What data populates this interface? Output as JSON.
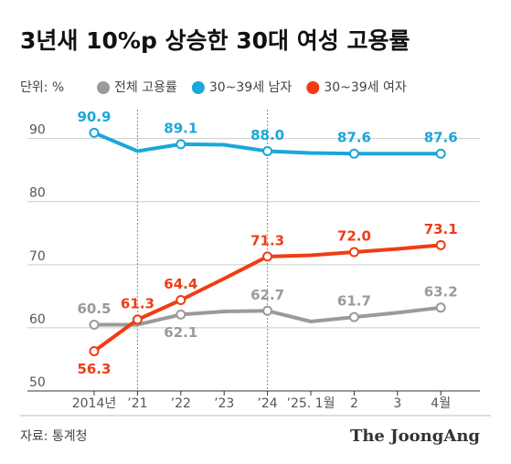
{
  "chart_data": {
    "type": "line",
    "title": "3년새 10%p 상승한 30대 여성 고용률",
    "unit": "단위: %",
    "source": "자료: 통계청",
    "credit": "The JoongAng",
    "categories": [
      "2014년",
      "’21",
      "’22",
      "’23",
      "’24",
      "’25. 1월",
      "2",
      "3",
      "4월"
    ],
    "series": [
      {
        "name": "전체 고용률",
        "color": "#9a9a9a",
        "values": [
          60.5,
          60.5,
          62.1,
          62.6,
          62.7,
          61.0,
          61.7,
          62.4,
          63.2
        ],
        "value_labels": [
          "60.5",
          null,
          "62.1",
          null,
          "62.7",
          null,
          "61.7",
          null,
          "63.2"
        ]
      },
      {
        "name": "30~39세 남자",
        "color": "#1aa7d9",
        "values": [
          90.9,
          88.0,
          89.1,
          89.0,
          88.0,
          87.7,
          87.6,
          87.6,
          87.6
        ],
        "value_labels": [
          "90.9",
          null,
          "89.1",
          null,
          "88.0",
          null,
          "87.6",
          null,
          "87.6"
        ]
      },
      {
        "name": "30~39세 여자",
        "color": "#f03c14",
        "values": [
          56.3,
          61.3,
          64.4,
          67.8,
          71.3,
          71.5,
          72.0,
          72.5,
          73.1
        ],
        "value_labels": [
          "56.3",
          "61.3",
          "64.4",
          null,
          "71.3",
          null,
          "72.0",
          null,
          "73.1"
        ]
      }
    ],
    "ylim": [
      50,
      94
    ],
    "yticks": [
      50,
      60,
      70,
      80,
      90
    ],
    "grid": true
  }
}
